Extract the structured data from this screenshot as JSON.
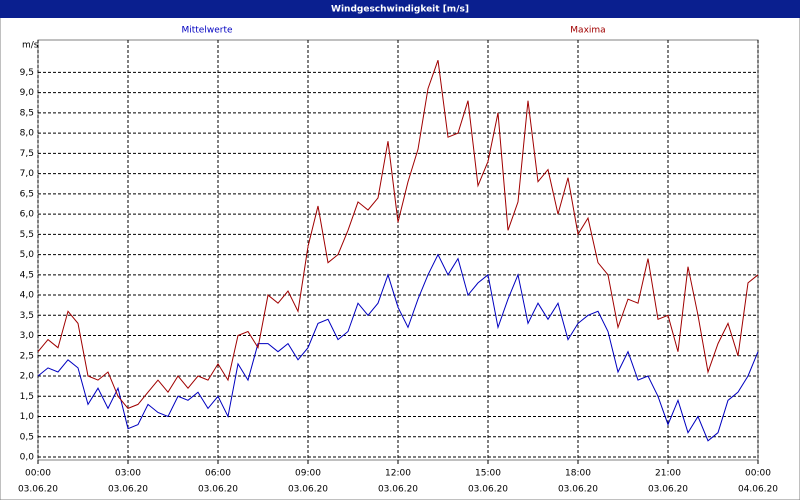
{
  "chart_data": {
    "type": "line",
    "title": "Windgeschwindigkeit [m/s]",
    "y_label": "m/s",
    "x": [
      0,
      20,
      40,
      60,
      80,
      100,
      120,
      140,
      160,
      180,
      200,
      220,
      240,
      260,
      280,
      300,
      320,
      340,
      360,
      380,
      400,
      420,
      440,
      460,
      480,
      500,
      520,
      540,
      560,
      580,
      600,
      620,
      640,
      660,
      680,
      700,
      720,
      740,
      760,
      780,
      800,
      820,
      840,
      860,
      880,
      900,
      920,
      940,
      960,
      980,
      1000,
      1020,
      1040,
      1060,
      1080,
      1100,
      1120,
      1140,
      1160,
      1180,
      1200,
      1220,
      1240,
      1260,
      1280,
      1300,
      1320,
      1340,
      1360,
      1380,
      1400,
      1420,
      1440
    ],
    "series": [
      {
        "name": "Mittelwerte",
        "color": "#0000c0",
        "values": [
          2.0,
          2.2,
          2.1,
          2.4,
          2.2,
          1.3,
          1.7,
          1.2,
          1.7,
          0.7,
          0.8,
          1.3,
          1.1,
          1.0,
          1.5,
          1.4,
          1.6,
          1.2,
          1.5,
          1.0,
          2.3,
          1.9,
          2.8,
          2.8,
          2.6,
          2.8,
          2.4,
          2.7,
          3.3,
          3.4,
          2.9,
          3.1,
          3.8,
          3.5,
          3.8,
          4.5,
          3.7,
          3.2,
          3.9,
          4.5,
          5.0,
          4.5,
          4.9,
          4.0,
          4.3,
          4.5,
          3.2,
          3.9,
          4.5,
          3.3,
          3.8,
          3.4,
          3.8,
          2.9,
          3.3,
          3.5,
          3.6,
          3.1,
          2.1,
          2.6,
          1.9,
          2.0,
          1.5,
          0.8,
          1.4,
          0.6,
          1.0,
          0.4,
          0.6,
          1.4,
          1.6,
          2.0,
          2.6
        ]
      },
      {
        "name": "Maxima",
        "color": "#a00000",
        "values": [
          2.6,
          2.9,
          2.7,
          3.6,
          3.3,
          2.0,
          1.9,
          2.1,
          1.5,
          1.2,
          1.3,
          1.6,
          1.9,
          1.6,
          2.0,
          1.7,
          2.0,
          1.9,
          2.3,
          1.9,
          3.0,
          3.1,
          2.7,
          4.0,
          3.8,
          4.1,
          3.6,
          5.2,
          6.2,
          4.8,
          5.0,
          5.6,
          6.3,
          6.1,
          6.4,
          7.8,
          5.8,
          6.8,
          7.6,
          9.1,
          9.8,
          7.9,
          8.0,
          8.8,
          6.7,
          7.3,
          8.5,
          5.6,
          6.3,
          8.8,
          6.8,
          7.1,
          6.0,
          6.9,
          5.5,
          5.9,
          4.8,
          4.5,
          3.2,
          3.9,
          3.8,
          4.9,
          3.4,
          3.5,
          2.6,
          4.7,
          3.5,
          2.1,
          2.8,
          3.3,
          2.5,
          4.3,
          4.5
        ]
      }
    ],
    "xlim": [
      0,
      1440
    ],
    "xticks": [
      {
        "value": 0,
        "label": "00:00"
      },
      {
        "value": 180,
        "label": "03:00"
      },
      {
        "value": 360,
        "label": "06:00"
      },
      {
        "value": 540,
        "label": "09:00"
      },
      {
        "value": 720,
        "label": "12:00"
      },
      {
        "value": 900,
        "label": "15:00"
      },
      {
        "value": 1080,
        "label": "18:00"
      },
      {
        "value": 1260,
        "label": "21:00"
      },
      {
        "value": 1440,
        "label": "00:00"
      }
    ],
    "xtick_dates": [
      "03.06.20",
      "03.06.20",
      "03.06.20",
      "03.06.20",
      "03.06.20",
      "03.06.20",
      "03.06.20",
      "03.06.20",
      "04.06.20"
    ],
    "ylim": [
      0,
      10.3
    ],
    "yticks": [
      {
        "value": 0,
        "label": "0,0"
      },
      {
        "value": 0.5,
        "label": "0,5"
      },
      {
        "value": 1,
        "label": "1,0"
      },
      {
        "value": 1.5,
        "label": "1,5"
      },
      {
        "value": 2,
        "label": "2,0"
      },
      {
        "value": 2.5,
        "label": "2,5"
      },
      {
        "value": 3,
        "label": "3,0"
      },
      {
        "value": 3.5,
        "label": "3,5"
      },
      {
        "value": 4,
        "label": "4,0"
      },
      {
        "value": 4.5,
        "label": "4,5"
      },
      {
        "value": 5,
        "label": "5,0"
      },
      {
        "value": 5.5,
        "label": "5,5"
      },
      {
        "value": 6,
        "label": "6,0"
      },
      {
        "value": 6.5,
        "label": "6,5"
      },
      {
        "value": 7,
        "label": "7,0"
      },
      {
        "value": 7.5,
        "label": "7,5"
      },
      {
        "value": 8,
        "label": "8,0"
      },
      {
        "value": 8.5,
        "label": "8,5"
      },
      {
        "value": 9,
        "label": "9,0"
      },
      {
        "value": 9.5,
        "label": "9,5"
      }
    ],
    "grid": true
  }
}
